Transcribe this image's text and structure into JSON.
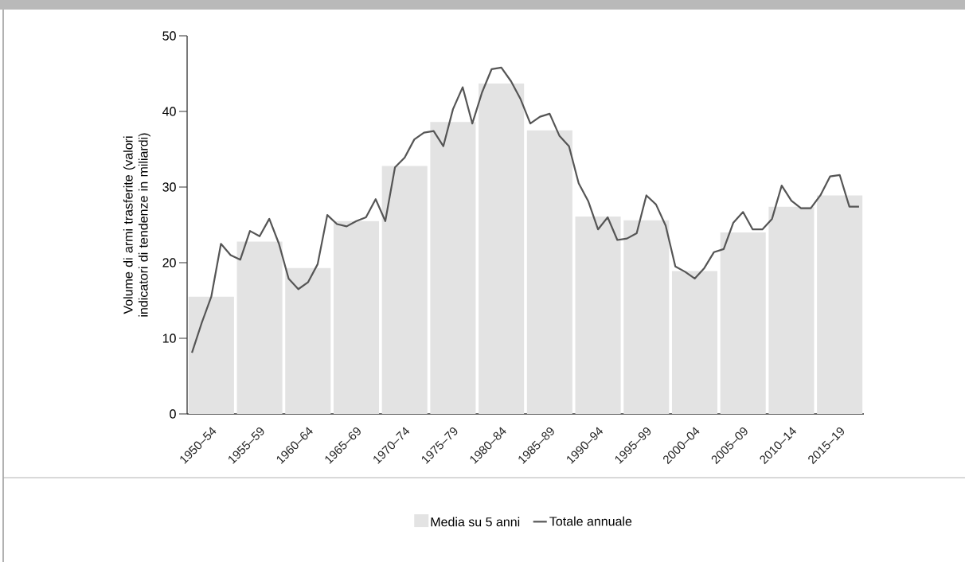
{
  "chart_data": [
    {
      "type": "bar",
      "ylabel": "Volume di armi trasferite (valori indicatori di tendenze in miliardi)",
      "categories": [
        "1950–54",
        "1955–59",
        "1960–64",
        "1965–69",
        "1970–74",
        "1975–79",
        "1980–84",
        "1985–89",
        "1990–94",
        "1995–99",
        "2000–04",
        "2005–09",
        "2010–14",
        "2015–19"
      ],
      "series": [
        {
          "name": "Media su 5 anni",
          "color": "#e3e3e3",
          "values": [
            15.5,
            22.8,
            19.3,
            25.5,
            32.8,
            38.6,
            43.7,
            37.5,
            26.1,
            25.6,
            18.9,
            24.0,
            27.4,
            28.9
          ]
        }
      ],
      "ylim": [
        0,
        50
      ],
      "yticks": [
        0,
        10,
        20,
        30,
        40,
        50
      ],
      "legend": "bottom"
    },
    {
      "type": "line",
      "categories": [
        null,
        null,
        null,
        null,
        null,
        null,
        null,
        null,
        null,
        null,
        null,
        null,
        null,
        null,
        null,
        null,
        null,
        null,
        null,
        null,
        null,
        null,
        null,
        null,
        null,
        null,
        null,
        null,
        null,
        null,
        null,
        null,
        null,
        null,
        null,
        null,
        null,
        null,
        null,
        null,
        null,
        null,
        null,
        null,
        null,
        null,
        null,
        null,
        null,
        null,
        null,
        null,
        null,
        null,
        null,
        null,
        null,
        null,
        null,
        null,
        null,
        null,
        null,
        null,
        null,
        null,
        null,
        null,
        null,
        null
      ],
      "series": [
        {
          "name": "Totale annuale",
          "color": "#555555",
          "values": [
            8.1,
            12.0,
            15.5,
            22.5,
            21.0,
            20.4,
            24.2,
            23.5,
            25.8,
            22.5,
            17.9,
            16.5,
            17.4,
            19.8,
            26.3,
            25.1,
            24.8,
            25.5,
            26.0,
            28.4,
            25.5,
            32.6,
            33.9,
            36.3,
            37.2,
            37.4,
            35.4,
            40.3,
            43.2,
            38.4,
            42.5,
            45.6,
            45.8,
            44.0,
            41.6,
            38.4,
            39.3,
            39.7,
            36.8,
            35.4,
            30.5,
            28.1,
            24.4,
            26.0,
            23.0,
            23.2,
            23.9,
            28.9,
            27.7,
            24.9,
            19.5,
            18.8,
            17.9,
            19.3,
            21.4,
            21.8,
            25.3,
            26.7,
            24.4,
            24.4,
            25.8,
            30.2,
            28.2,
            27.2,
            27.2,
            28.9,
            31.4,
            31.6,
            27.4,
            27.4
          ]
        }
      ],
      "ylim": [
        0,
        50
      ],
      "yticks": [
        0,
        10,
        20,
        30,
        40,
        50
      ],
      "tick_labels": false,
      "legend": "bottom"
    }
  ]
}
